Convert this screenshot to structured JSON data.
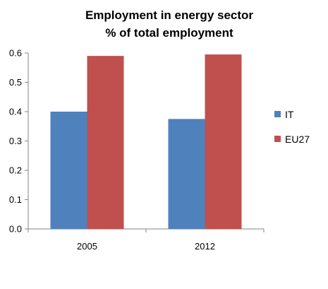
{
  "chart_data": {
    "type": "bar",
    "title": [
      "Employment in energy sector",
      "% of total employment"
    ],
    "xlabel": "",
    "ylabel": "",
    "categories": [
      "2005",
      "2012"
    ],
    "series": [
      {
        "name": "IT",
        "values": [
          0.4,
          0.375
        ],
        "color": "#4F81BD"
      },
      {
        "name": "EU27",
        "values": [
          0.59,
          0.595
        ],
        "color": "#C0504D"
      }
    ],
    "ylim": [
      0,
      0.6
    ],
    "yticks": [
      "0.0",
      "0.1",
      "0.2",
      "0.3",
      "0.4",
      "0.5",
      "0.6"
    ],
    "grid": false,
    "legend_position": "right"
  }
}
